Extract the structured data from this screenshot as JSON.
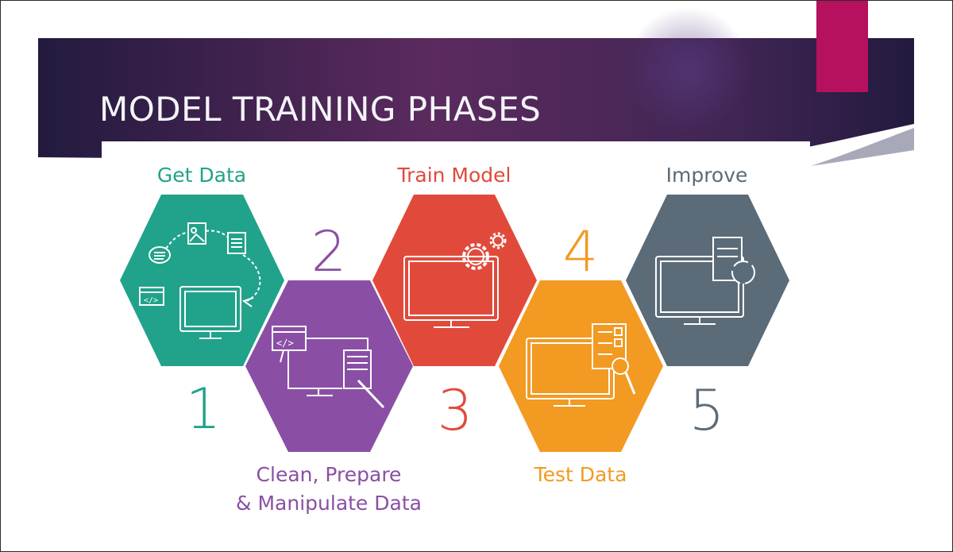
{
  "slide": {
    "title": "MODEL TRAINING PHASES"
  },
  "colors": {
    "banner_dark": "#231a3e",
    "banner_mid": "#5b2a5e",
    "accent_magenta": "#b5115e",
    "get_data": "#21a28a",
    "clean_prepare": "#8a4fa5",
    "train_model": "#e14a3b",
    "test_data": "#f29a22",
    "improve": "#5b6b78"
  },
  "steps": [
    {
      "number": "1",
      "label": "Get Data",
      "icon": "monitor-with-data-sources-icon"
    },
    {
      "number": "2",
      "label_line1": "Clean, Prepare",
      "label_line2": "& Manipulate Data",
      "icon": "code-editing-monitor-icon"
    },
    {
      "number": "3",
      "label": "Train Model",
      "icon": "monitor-with-gears-icon"
    },
    {
      "number": "4",
      "label": "Test Data",
      "icon": "monitor-with-checklist-icon"
    },
    {
      "number": "5",
      "label": "Improve",
      "icon": "monitor-with-refresh-icon"
    }
  ]
}
